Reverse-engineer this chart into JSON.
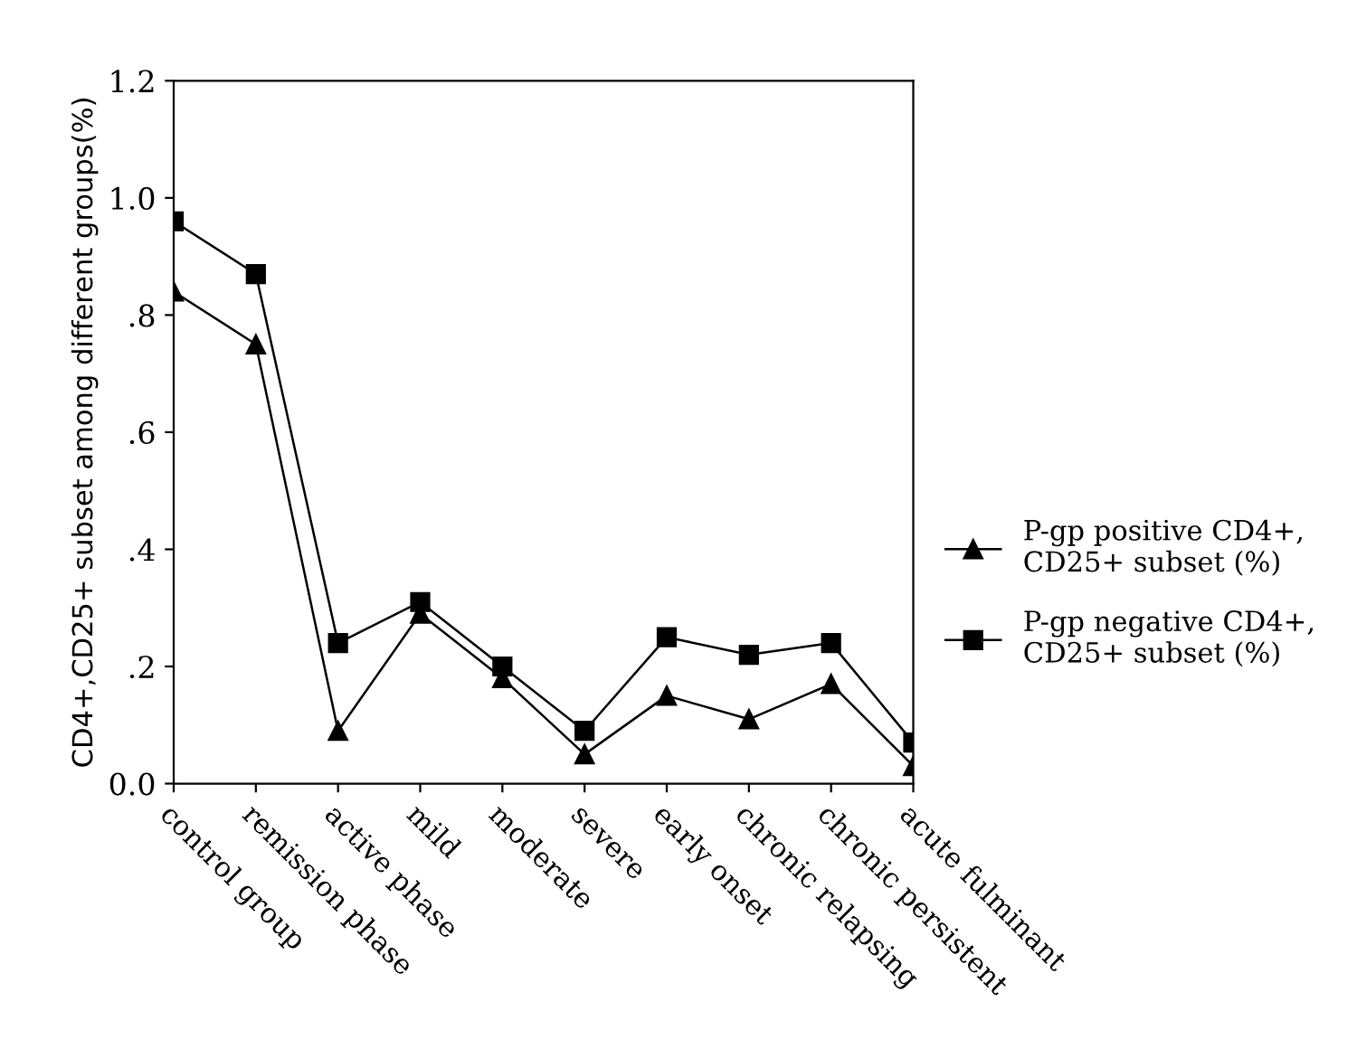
{
  "chart_data": {
    "type": "line",
    "ylabel": "CD4+,CD25+ subset among different groups(%)",
    "categories": [
      "control group",
      "remission phase",
      "active phase",
      "mild",
      "moderate",
      "severe",
      "early onset",
      "chronic relapsing",
      "chronic persistent",
      "acute fulminant"
    ],
    "series": [
      {
        "name": "P-gp positive CD4+,\nCD25+ subset (%)",
        "color": "#000000",
        "marker": "triangle",
        "values": [
          0.84,
          0.75,
          0.09,
          0.29,
          0.18,
          0.05,
          0.15,
          0.11,
          0.17,
          0.03
        ]
      },
      {
        "name": "P-gp negative CD4+,\nCD25+ subset (%)",
        "color": "#000000",
        "marker": "square",
        "values": [
          0.96,
          0.87,
          0.24,
          0.31,
          0.2,
          0.09,
          0.25,
          0.22,
          0.24,
          0.07
        ]
      }
    ],
    "ylim": [
      0,
      1.2
    ],
    "yticks": [
      {
        "value": 0,
        "label": "0.0"
      },
      {
        "value": 0.2,
        "label": ".2"
      },
      {
        "value": 0.4,
        "label": ".4"
      },
      {
        "value": 0.6,
        "label": ".6"
      },
      {
        "value": 0.8,
        "label": ".8"
      },
      {
        "value": 1.0,
        "label": "1.0"
      },
      {
        "value": 1.2,
        "label": "1.2"
      }
    ],
    "line_style": "solid",
    "grid": false,
    "legend": "right"
  }
}
